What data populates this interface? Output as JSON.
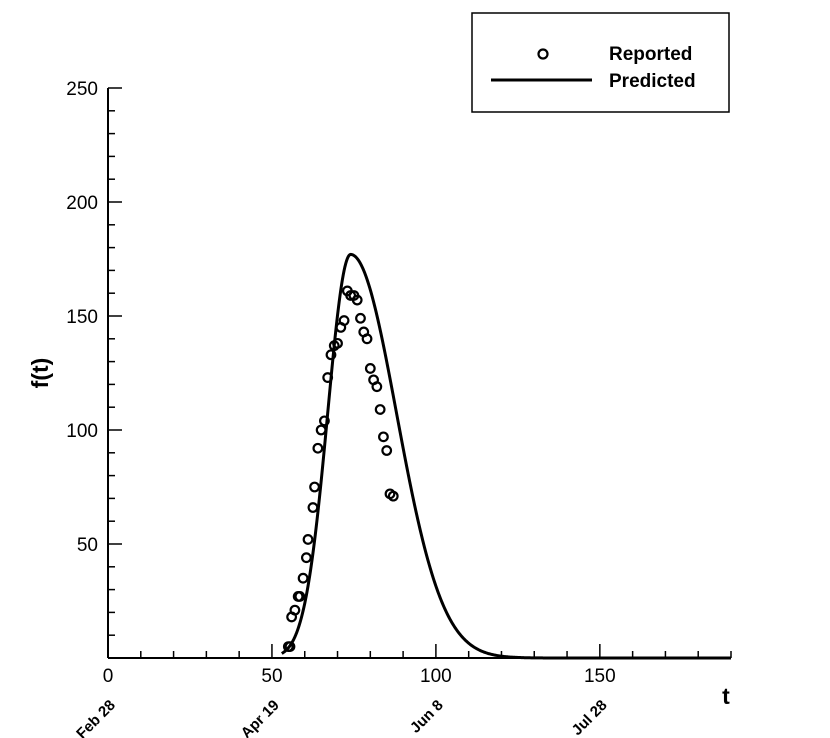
{
  "chart_data": {
    "type": "scatter",
    "xlabel": "t",
    "ylabel": "f(t)",
    "xlim": [
      0,
      190
    ],
    "ylim": [
      0,
      250
    ],
    "x_ticks": [
      0,
      50,
      100,
      150
    ],
    "y_ticks": [
      50,
      100,
      150,
      200,
      250
    ],
    "date_labels": [
      {
        "x": 0,
        "label": "Feb 28"
      },
      {
        "x": 50,
        "label": "Apr 19"
      },
      {
        "x": 100,
        "label": "Jun 8"
      },
      {
        "x": 150,
        "label": "Jul 28"
      }
    ],
    "legend": {
      "position": "top-right",
      "entries": [
        "Reported",
        "Predicted"
      ]
    },
    "series": [
      {
        "name": "Reported",
        "style": "open-circle",
        "points": [
          [
            55,
            5
          ],
          [
            55.5,
            5
          ],
          [
            56,
            18
          ],
          [
            57,
            21
          ],
          [
            58,
            27
          ],
          [
            58.5,
            27
          ],
          [
            59.5,
            35
          ],
          [
            60.5,
            44
          ],
          [
            61,
            52
          ],
          [
            62.5,
            66
          ],
          [
            63,
            75
          ],
          [
            64,
            92
          ],
          [
            65,
            100
          ],
          [
            66,
            104
          ],
          [
            67,
            123
          ],
          [
            68,
            133
          ],
          [
            69,
            137
          ],
          [
            70,
            138
          ],
          [
            71,
            145
          ],
          [
            72,
            148
          ],
          [
            73,
            161
          ],
          [
            74,
            159
          ],
          [
            75,
            159
          ],
          [
            76,
            157
          ],
          [
            77,
            149
          ],
          [
            78,
            143
          ],
          [
            79,
            140
          ],
          [
            80,
            127
          ],
          [
            81,
            122
          ],
          [
            82,
            119
          ],
          [
            83,
            109
          ],
          [
            84,
            97
          ],
          [
            85,
            91
          ],
          [
            86,
            72
          ],
          [
            87,
            71
          ]
        ]
      },
      {
        "name": "Predicted",
        "style": "line",
        "peak_t": 74,
        "peak_value": 177,
        "rise_width": 7,
        "fall_width": 14,
        "t_start": 53,
        "t_end": 190
      }
    ]
  }
}
